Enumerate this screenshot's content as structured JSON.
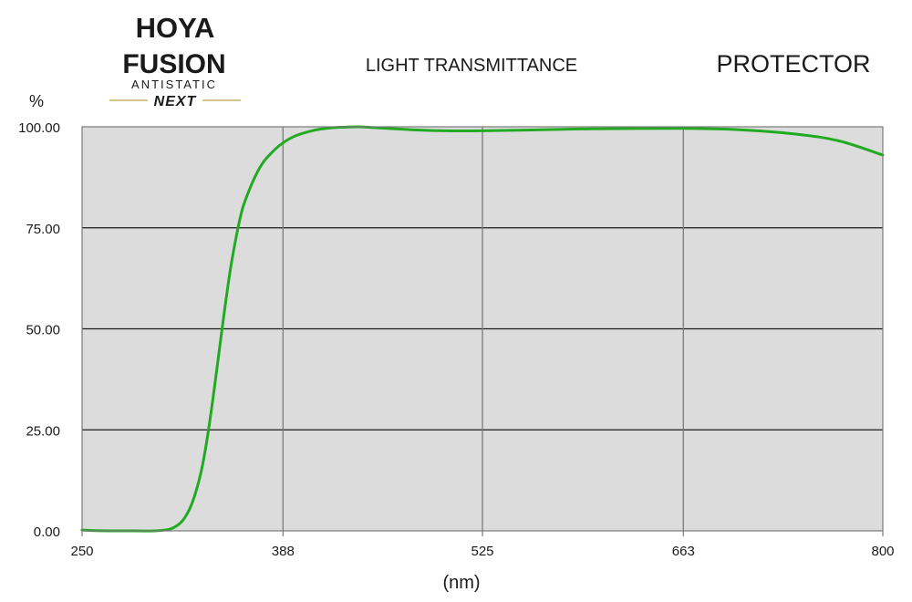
{
  "logo": {
    "brand": "HOYA",
    "line1": "FUSION",
    "line2": "ANTISTATIC",
    "line3": "NEXT"
  },
  "header": {
    "product": "PROTECTOR"
  },
  "colors": {
    "plot_background": "#dcdcdc",
    "curve": "#22aa22",
    "logo_gold": "#a88a1c",
    "grid_major": "#1a1a1a",
    "grid_minor": "#7a7a7a"
  },
  "chart_data": {
    "type": "line",
    "title": "LIGHT TRANSMITTANCE",
    "xlabel": "(nm)",
    "ylabel": "%",
    "xlim": [
      250,
      800
    ],
    "ylim": [
      0,
      100
    ],
    "xticks": [
      250,
      388,
      525,
      663,
      800
    ],
    "xtick_labels": [
      "250",
      "388",
      "525",
      "663",
      "800"
    ],
    "yticks": [
      0,
      25,
      50,
      75,
      100
    ],
    "ytick_labels": [
      "0.00",
      "25.00",
      "50.00",
      "75.00",
      "100.00"
    ],
    "grid": true,
    "legend": "none",
    "series": [
      {
        "x": [
          250,
          260,
          270,
          280,
          300,
          310,
          316,
          320,
          324,
          328,
          332,
          336,
          340,
          344,
          348,
          352,
          356,
          360,
          365,
          370,
          375,
          380,
          385,
          390,
          395,
          400,
          410,
          420,
          430,
          440,
          450,
          460,
          480,
          500,
          525,
          560,
          600,
          663,
          700,
          740,
          770,
          800
        ],
        "y": [
          0.2,
          0.05,
          0,
          0,
          0,
          0.4,
          1.5,
          3,
          5.5,
          9.5,
          15,
          23,
          33,
          44,
          55,
          65,
          73,
          79.5,
          84.5,
          88.5,
          91.5,
          93.5,
          95.2,
          96.5,
          97.5,
          98.2,
          99.2,
          99.7,
          99.9,
          100,
          99.8,
          99.6,
          99.2,
          99,
          99,
          99.2,
          99.5,
          99.6,
          99.3,
          98.2,
          96.5,
          93
        ]
      }
    ]
  }
}
